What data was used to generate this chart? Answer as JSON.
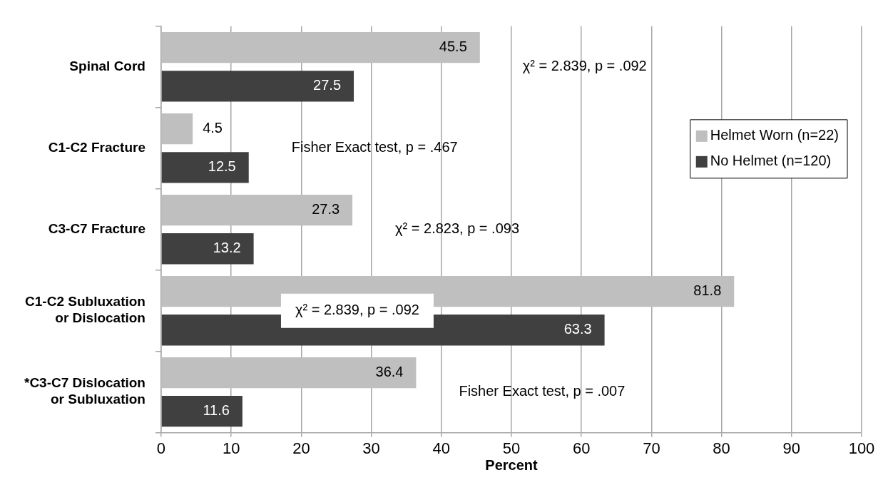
{
  "chart_data": {
    "type": "bar",
    "orientation": "horizontal",
    "xlabel": "Percent",
    "categories": [
      "Spinal Cord",
      "C1-C2 Fracture",
      "C3-C7 Fracture",
      "C1-C2 Subluxation or Dislocation",
      "*C3-C7 Dislocation or Subluxation"
    ],
    "series": [
      {
        "name": "Helmet Worn (n=22)",
        "color": "#bfbfbf",
        "values": [
          45.5,
          4.5,
          27.3,
          81.8,
          36.4
        ]
      },
      {
        "name": "No Helmet (n=120)",
        "color": "#404040",
        "values": [
          27.5,
          12.5,
          13.2,
          63.3,
          11.6
        ]
      }
    ],
    "xlim": [
      0,
      100
    ],
    "xticks": [
      0,
      10,
      20,
      30,
      40,
      50,
      60,
      70,
      80,
      90,
      100
    ],
    "grid": "x",
    "legend": "right",
    "data_labels": true,
    "annotations": [
      "χ² = 2.839, p = .092",
      "Fisher Exact test, p = .467",
      "χ² = 2.823, p = .093",
      "χ² = 2.839, p = .092",
      "Fisher Exact test, p = .007"
    ]
  }
}
